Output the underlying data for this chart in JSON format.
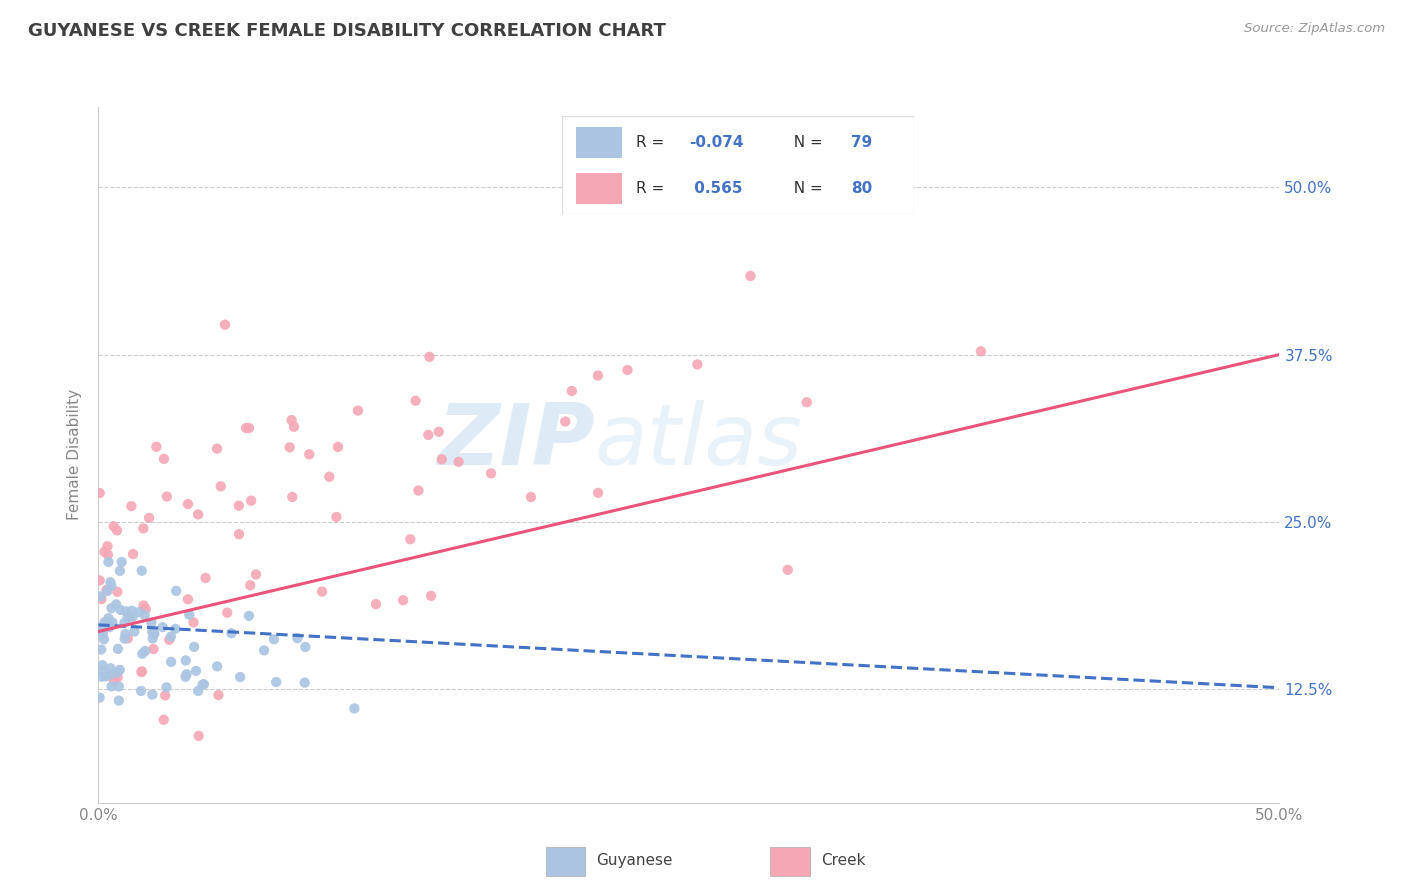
{
  "title": "GUYANESE VS CREEK FEMALE DISABILITY CORRELATION CHART",
  "source": "Source: ZipAtlas.com",
  "ylabel": "Female Disability",
  "x_min": 0.0,
  "x_max": 0.5,
  "y_min": 0.04,
  "y_max": 0.56,
  "x_ticks": [
    0.0,
    0.1,
    0.2,
    0.3,
    0.4,
    0.5
  ],
  "x_tick_labels": [
    "0.0%",
    "",
    "",
    "",
    "",
    "50.0%"
  ],
  "y_ticks": [
    0.125,
    0.25,
    0.375,
    0.5
  ],
  "y_tick_labels": [
    "12.5%",
    "25.0%",
    "37.5%",
    "50.0%"
  ],
  "watermark_zip": "ZIP",
  "watermark_atlas": "atlas",
  "guyanese_R": -0.074,
  "guyanese_N": 79,
  "creek_R": 0.565,
  "creek_N": 80,
  "guyanese_color": "#aac4e2",
  "creek_color": "#f5a7b5",
  "guyanese_line_color": "#4472c4",
  "creek_line_color": "#e8547a",
  "title_color": "#404040",
  "axis_label_color": "#888888",
  "tick_color": "#888888",
  "background_color": "#ffffff",
  "grid_color": "#cccccc",
  "legend_box_color_guyanese": "#aac4e2",
  "legend_box_color_creek": "#f5a7b5",
  "right_tick_color": "#4472c4",
  "guyanese_line_start_y": 0.173,
  "guyanese_line_end_y": 0.126,
  "creek_line_start_y": 0.168,
  "creek_line_end_y": 0.375,
  "guyanese_seed": 42,
  "creek_seed": 99
}
